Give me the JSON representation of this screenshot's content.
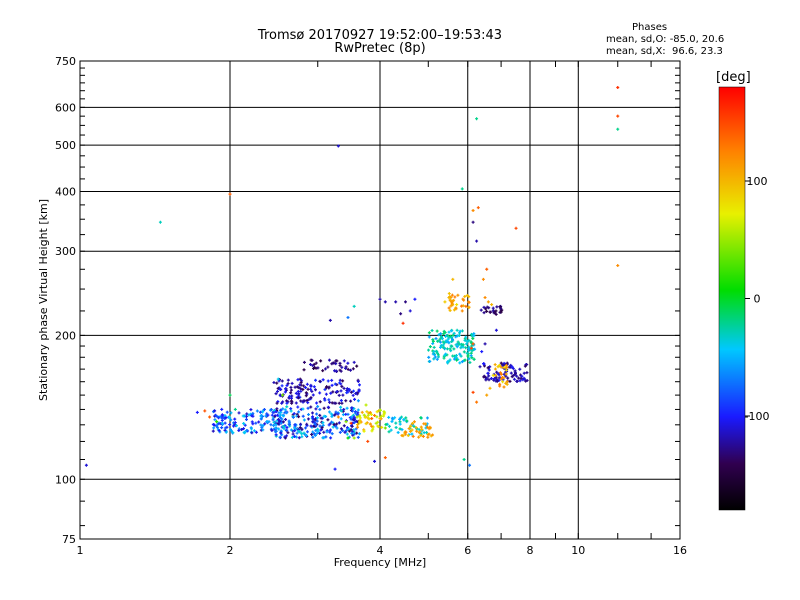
{
  "chart_data": {
    "type": "scatter",
    "title": "Tromsø 20170927 19:52:00–19:53:43",
    "subtitle": "RwPretec (8p)",
    "xlabel": "Frequency [MHz]",
    "ylabel": "Stationary phase Virtual Height [km]",
    "x_scale": "log",
    "y_scale": "log",
    "xlim": [
      1,
      16
    ],
    "ylim": [
      75,
      750
    ],
    "x_ticks": [
      1,
      2,
      4,
      6,
      8,
      10,
      16
    ],
    "x_tick_labels": [
      "1",
      "2",
      "4",
      "6",
      "8",
      "10",
      "16"
    ],
    "y_ticks": [
      75,
      100,
      200,
      300,
      400,
      500,
      600,
      750
    ],
    "y_tick_labels": [
      "75",
      "100",
      "200",
      "300",
      "400",
      "500",
      "600",
      "750"
    ],
    "grid": true,
    "color_by": "phase",
    "colorbar": {
      "label": "[deg]",
      "range": [
        -180,
        180
      ],
      "ticks": [
        100,
        0,
        -100
      ],
      "tick_labels": [
        "100",
        "0",
        "-100"
      ]
    },
    "stats": {
      "header": "Phases",
      "line1": "mean, sd,O: -85.0, 20.6",
      "line2": "mean, sd,X:  96.6, 23.3"
    },
    "points": [
      [
        1.03,
        107,
        -110
      ],
      [
        1.45,
        345,
        -30
      ],
      [
        2.0,
        395,
        140
      ],
      [
        3.3,
        498,
        -110
      ],
      [
        3.25,
        105,
        -100
      ],
      [
        3.9,
        109,
        -110
      ],
      [
        4.1,
        111,
        140
      ],
      [
        6.25,
        568,
        -20
      ],
      [
        5.85,
        405,
        -20
      ],
      [
        6.15,
        365,
        120
      ],
      [
        6.3,
        370,
        140
      ],
      [
        6.25,
        315,
        -120
      ],
      [
        6.15,
        345,
        -130
      ],
      [
        7.5,
        335,
        150
      ],
      [
        12.0,
        660,
        160
      ],
      [
        12.0,
        575,
        150
      ],
      [
        12.0,
        540,
        -20
      ],
      [
        12.0,
        280,
        120
      ],
      [
        5.9,
        110,
        -20
      ],
      [
        6.05,
        107,
        -70
      ],
      [
        1.72,
        138,
        -100
      ],
      [
        1.78,
        139,
        145
      ],
      [
        1.82,
        135,
        140
      ],
      [
        1.88,
        132,
        20
      ],
      [
        2.0,
        150,
        -10
      ],
      [
        2.05,
        140,
        -20
      ],
      [
        2.5,
        162,
        -40
      ],
      [
        2.55,
        150,
        40
      ],
      [
        3.3,
        135,
        120
      ],
      [
        3.42,
        132,
        45
      ],
      [
        3.55,
        122,
        50
      ],
      [
        3.62,
        146,
        -60
      ],
      [
        3.45,
        122,
        10
      ],
      [
        3.5,
        131,
        160
      ],
      [
        3.6,
        135,
        60
      ],
      [
        3.75,
        143,
        60
      ],
      [
        3.85,
        134,
        140
      ],
      [
        3.78,
        120,
        150
      ],
      [
        3.9,
        136,
        130
      ],
      [
        3.85,
        129,
        120
      ],
      [
        4.0,
        134,
        100
      ],
      [
        4.1,
        128,
        40
      ],
      [
        3.18,
        215,
        -120
      ],
      [
        3.45,
        218,
        -70
      ],
      [
        3.55,
        230,
        -30
      ],
      [
        4.0,
        238,
        -120
      ],
      [
        4.1,
        235,
        -120
      ],
      [
        4.3,
        235,
        -120
      ],
      [
        4.5,
        235,
        -130
      ],
      [
        4.7,
        238,
        -100
      ],
      [
        4.4,
        222,
        -130
      ],
      [
        4.6,
        225,
        -110
      ],
      [
        4.45,
        212,
        160
      ],
      [
        5.4,
        235,
        90
      ],
      [
        5.5,
        240,
        100
      ],
      [
        5.6,
        236,
        110
      ],
      [
        5.7,
        232,
        80
      ],
      [
        5.85,
        225,
        120
      ],
      [
        5.95,
        230,
        130
      ],
      [
        5.6,
        262,
        100
      ],
      [
        6.45,
        262,
        120
      ],
      [
        6.5,
        240,
        120
      ],
      [
        6.6,
        235,
        110
      ],
      [
        6.7,
        232,
        100
      ],
      [
        6.75,
        228,
        -120
      ],
      [
        6.85,
        205,
        -110
      ],
      [
        6.35,
        172,
        -120
      ],
      [
        6.55,
        150,
        110
      ],
      [
        6.65,
        155,
        100
      ],
      [
        6.75,
        165,
        80
      ],
      [
        6.9,
        172,
        90
      ],
      [
        7.05,
        160,
        80
      ],
      [
        7.2,
        158,
        100
      ],
      [
        6.15,
        152,
        150
      ],
      [
        6.25,
        145,
        130
      ],
      [
        6.55,
        275,
        140
      ],
      [
        6.1,
        188,
        150
      ],
      [
        6.15,
        192,
        140
      ],
      [
        6.4,
        185,
        -100
      ],
      [
        6.5,
        192,
        -120
      ]
    ],
    "clusters": [
      {
        "fx": [
          1.85,
          2.55
        ],
        "h": [
          125,
          140
        ],
        "phi": [
          -120,
          -40
        ],
        "n": 150
      },
      {
        "fx": [
          2.45,
          3.65
        ],
        "h": [
          122,
          142
        ],
        "phi": [
          -140,
          -30
        ],
        "n": 260
      },
      {
        "fx": [
          2.45,
          3.65
        ],
        "h": [
          144,
          162
        ],
        "phi": [
          -140,
          -90
        ],
        "n": 150
      },
      {
        "fx": [
          2.8,
          3.6
        ],
        "h": [
          168,
          178
        ],
        "phi": [
          -150,
          -110
        ],
        "n": 40
      },
      {
        "fx": [
          3.6,
          4.1
        ],
        "h": [
          126,
          140
        ],
        "phi": [
          55,
          120
        ],
        "n": 45
      },
      {
        "fx": [
          4.1,
          5.0
        ],
        "h": [
          124,
          135
        ],
        "phi": [
          -60,
          -10
        ],
        "n": 45
      },
      {
        "fx": [
          4.4,
          5.1
        ],
        "h": [
          122,
          133
        ],
        "phi": [
          90,
          130
        ],
        "n": 35
      },
      {
        "fx": [
          5.0,
          6.2
        ],
        "h": [
          175,
          205
        ],
        "phi": [
          -60,
          -10
        ],
        "n": 160
      },
      {
        "fx": [
          5.5,
          6.05
        ],
        "h": [
          225,
          245
        ],
        "phi": [
          90,
          130
        ],
        "n": 30
      },
      {
        "fx": [
          6.35,
          7.05
        ],
        "h": [
          221,
          230
        ],
        "phi": [
          -150,
          -120
        ],
        "n": 25
      },
      {
        "fx": [
          6.45,
          7.9
        ],
        "h": [
          160,
          175
        ],
        "phi": [
          -140,
          -100
        ],
        "n": 90
      },
      {
        "fx": [
          6.8,
          7.2
        ],
        "h": [
          155,
          175
        ],
        "phi": [
          80,
          130
        ],
        "n": 22
      }
    ]
  }
}
